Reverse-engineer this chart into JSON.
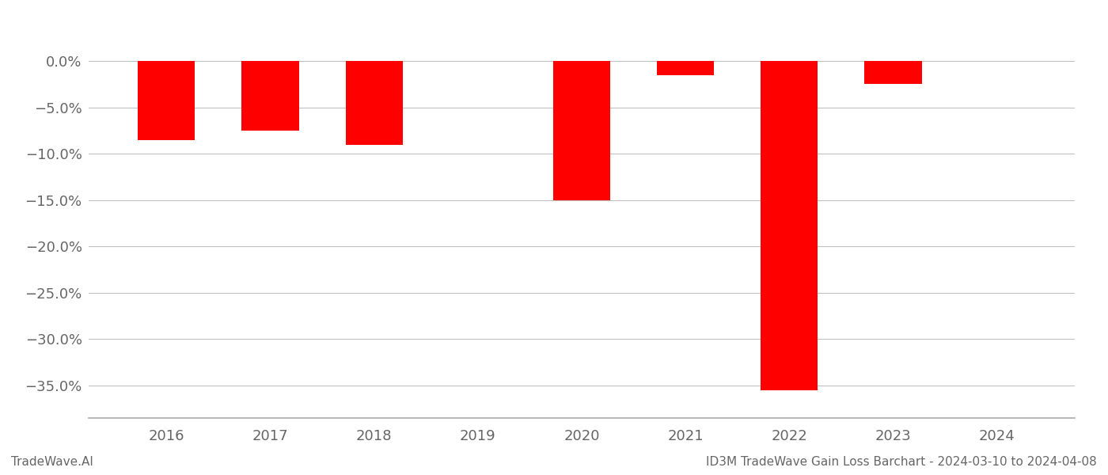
{
  "years": [
    2016,
    2017,
    2018,
    2019,
    2020,
    2021,
    2022,
    2023,
    2024
  ],
  "values": [
    -0.085,
    -0.075,
    -0.09,
    0.0,
    -0.15,
    -0.015,
    -0.355,
    -0.025,
    0.0
  ],
  "bar_color": "#ff0000",
  "background_color": "#ffffff",
  "grid_color": "#c0c0c0",
  "axis_color": "#aaaaaa",
  "text_color": "#666666",
  "ylim": [
    -0.385,
    0.03
  ],
  "yticks": [
    0.0,
    -0.05,
    -0.1,
    -0.15,
    -0.2,
    -0.25,
    -0.3,
    -0.35
  ],
  "footer_left": "TradeWave.AI",
  "footer_right": "ID3M TradeWave Gain Loss Barchart - 2024-03-10 to 2024-04-08",
  "footer_fontsize": 11,
  "tick_fontsize": 13,
  "bar_width": 0.55
}
